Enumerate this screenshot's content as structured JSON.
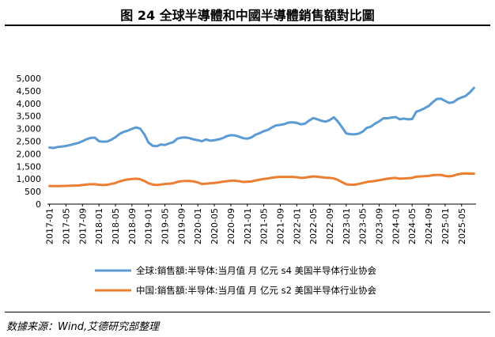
{
  "header": {
    "title": "图 24 全球半導體和中國半導體銷售額對比圖"
  },
  "footer": {
    "source": "数據来源：Wind,艾德研究部整理"
  },
  "colors": {
    "global": "#5B9BD5",
    "china": "#ED7D31",
    "axis": "#000000"
  },
  "chart_data": {
    "type": "line",
    "title": "图 24 全球半導體和中國半導體銷售額對比圖",
    "xlabel": "",
    "ylabel": "",
    "ylim": [
      0,
      5000
    ],
    "yticks": [
      0,
      500,
      1000,
      1500,
      2000,
      2500,
      3000,
      3500,
      4000,
      4500,
      5000
    ],
    "ytick_labels": [
      "0",
      "500",
      "1,000",
      "1,500",
      "2,000",
      "2,500",
      "3,000",
      "3,500",
      "4,000",
      "4,500",
      "5,000"
    ],
    "x": [
      "2017-01",
      "2017-02",
      "2017-03",
      "2017-04",
      "2017-05",
      "2017-06",
      "2017-07",
      "2017-08",
      "2017-09",
      "2017-10",
      "2017-11",
      "2017-12",
      "2018-01",
      "2018-02",
      "2018-03",
      "2018-04",
      "2018-05",
      "2018-06",
      "2018-07",
      "2018-08",
      "2018-09",
      "2018-10",
      "2018-11",
      "2018-12",
      "2019-01",
      "2019-02",
      "2019-03",
      "2019-04",
      "2019-05",
      "2019-06",
      "2019-07",
      "2019-08",
      "2019-09",
      "2019-10",
      "2019-11",
      "2019-12",
      "2020-01",
      "2020-02",
      "2020-03",
      "2020-04",
      "2020-05",
      "2020-06",
      "2020-07",
      "2020-08",
      "2020-09",
      "2020-10",
      "2020-11",
      "2020-12",
      "2021-01",
      "2021-02",
      "2021-03",
      "2021-04",
      "2021-05",
      "2021-06",
      "2021-07",
      "2021-08",
      "2021-09",
      "2021-10",
      "2021-11",
      "2021-12",
      "2022-01",
      "2022-02",
      "2022-03",
      "2022-04",
      "2022-05",
      "2022-06",
      "2022-07",
      "2022-08",
      "2022-09",
      "2022-10",
      "2022-11",
      "2022-12",
      "2023-01",
      "2023-02",
      "2023-03",
      "2023-04",
      "2023-05",
      "2023-06",
      "2023-07",
      "2023-08",
      "2023-09",
      "2023-10",
      "2023-11",
      "2023-12",
      "2024-01",
      "2024-02",
      "2024-03",
      "2024-04",
      "2024-05",
      "2024-06",
      "2024-07",
      "2024-08",
      "2024-09",
      "2024-10",
      "2024-11",
      "2024-12",
      "2025-01",
      "2025-02",
      "2025-03",
      "2025-04",
      "2025-05",
      "2025-06",
      "2025-07",
      "2025-08"
    ],
    "xtick_labels": [
      "2017-01",
      "2017-05",
      "2017-09",
      "2018-01",
      "2018-05",
      "2018-09",
      "2019-01",
      "2019-05",
      "2019-09",
      "2020-01",
      "2020-05",
      "2020-09",
      "2021-01",
      "2021-05",
      "2021-09",
      "2022-01",
      "2022-05",
      "2022-09",
      "2023-01",
      "2023-05",
      "2023-09",
      "2024-01",
      "2024-05",
      "2024-09",
      "2025-01",
      "2025-05"
    ],
    "series": [
      {
        "name": "全球:銷售額:半导体:当月值 月 亿元 s4 美国半导体行业协会",
        "color": "#5B9BD5",
        "values": [
          2250,
          2230,
          2270,
          2290,
          2310,
          2350,
          2390,
          2430,
          2500,
          2580,
          2630,
          2640,
          2500,
          2480,
          2490,
          2560,
          2660,
          2790,
          2870,
          2920,
          2990,
          3050,
          3000,
          2780,
          2450,
          2320,
          2300,
          2370,
          2350,
          2410,
          2460,
          2600,
          2640,
          2650,
          2620,
          2570,
          2540,
          2500,
          2570,
          2520,
          2540,
          2570,
          2620,
          2700,
          2740,
          2730,
          2680,
          2620,
          2600,
          2650,
          2760,
          2820,
          2900,
          2950,
          3050,
          3130,
          3150,
          3180,
          3240,
          3250,
          3230,
          3170,
          3200,
          3320,
          3420,
          3370,
          3310,
          3280,
          3340,
          3450,
          3280,
          3050,
          2810,
          2780,
          2770,
          2800,
          2880,
          3030,
          3080,
          3200,
          3290,
          3410,
          3410,
          3440,
          3460,
          3370,
          3400,
          3370,
          3380,
          3670,
          3730,
          3810,
          3900,
          4050,
          4180,
          4190,
          4100,
          4020,
          4050,
          4170,
          4240,
          4300,
          4440,
          4620
        ]
      },
      {
        "name": "中国:銷售額:半导体:当月值 月 亿元 s2 美国半导体行业协会",
        "color": "#ED7D31",
        "values": [
          720,
          715,
          715,
          720,
          725,
          730,
          735,
          740,
          760,
          780,
          790,
          790,
          770,
          760,
          770,
          800,
          840,
          900,
          950,
          980,
          1000,
          1010,
          990,
          920,
          830,
          780,
          760,
          780,
          800,
          810,
          830,
          880,
          910,
          920,
          920,
          900,
          860,
          800,
          810,
          830,
          840,
          860,
          890,
          910,
          930,
          930,
          910,
          880,
          890,
          900,
          940,
          970,
          1000,
          1020,
          1050,
          1070,
          1080,
          1080,
          1080,
          1080,
          1070,
          1040,
          1050,
          1080,
          1100,
          1090,
          1070,
          1050,
          1040,
          1020,
          960,
          870,
          790,
          770,
          770,
          800,
          840,
          880,
          900,
          920,
          950,
          980,
          1010,
          1030,
          1040,
          1010,
          1020,
          1030,
          1040,
          1090,
          1100,
          1110,
          1120,
          1150,
          1160,
          1160,
          1120,
          1100,
          1130,
          1180,
          1210,
          1220,
          1210,
          1210
        ]
      }
    ],
    "legend": [
      {
        "label": "全球:銷售額:半导体:当月值 月 亿元 s4 美国半导体行业协会"
      },
      {
        "label": "中国:銷售額:半导体:当月值 月 亿元 s2 美国半导体行业协会"
      }
    ],
    "legend_position": "bottom",
    "grid": false
  }
}
